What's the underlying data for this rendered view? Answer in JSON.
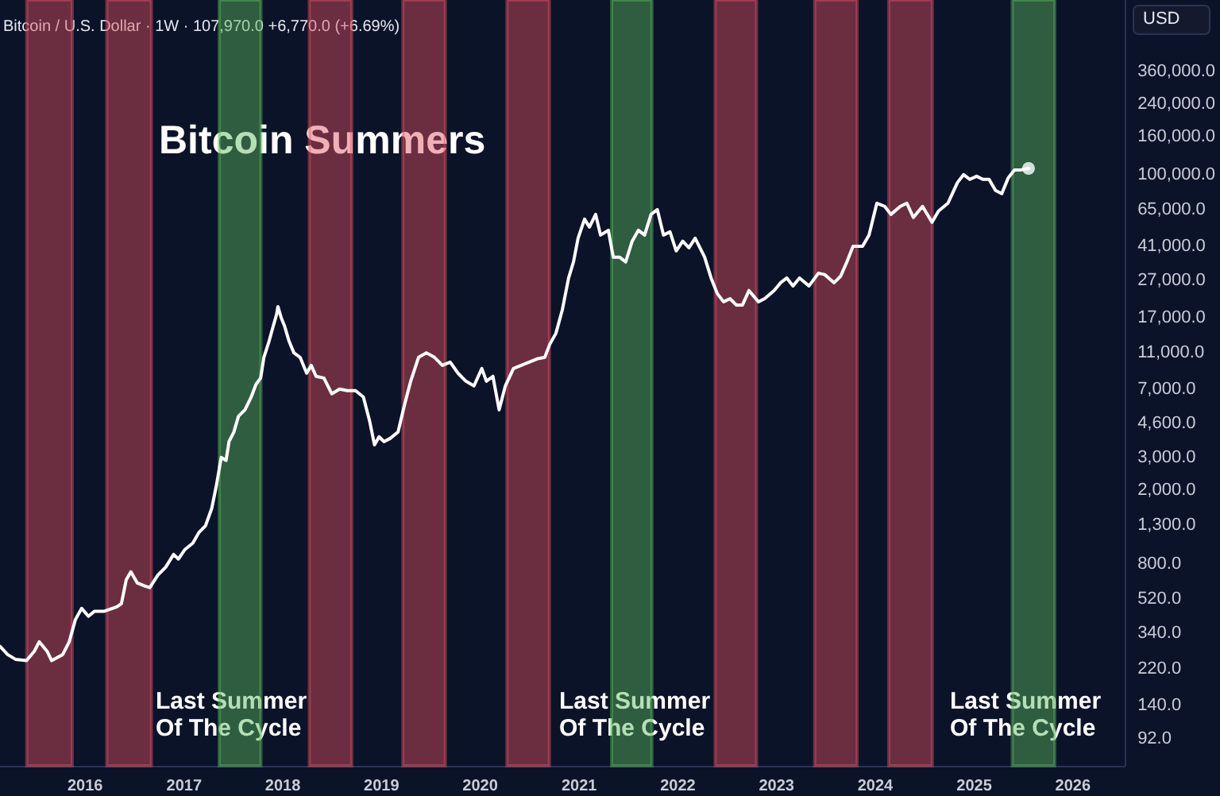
{
  "chart_data": {
    "type": "line",
    "title": "Bitcoin Summers",
    "subtitle": "Bitcoin / U.S. Dollar · 1W · 107,970.0 +6,770.0 (+6.69%)",
    "annotations": [
      "USD",
      "Last Summer\nOf The Cycle",
      "Last Summer\nOf The Cycle",
      "Last Summer\nOf The Cycle"
    ],
    "xlim": [
      "2015-02-20",
      "2026-07-12"
    ],
    "xticks": [
      "2016",
      "2017",
      "2018",
      "2019",
      "2020",
      "2021",
      "2022",
      "2023",
      "2024",
      "2025",
      "2026"
    ],
    "log": "y",
    "ylim": [
      66,
      870000
    ],
    "yticks": [
      {
        "value": 92,
        "label": "92.0"
      },
      {
        "value": 140,
        "label": "140.0"
      },
      {
        "value": 220,
        "label": "220.0"
      },
      {
        "value": 340,
        "label": "340.0"
      },
      {
        "value": 520,
        "label": "520.0"
      },
      {
        "value": 800,
        "label": "800.0"
      },
      {
        "value": 1300,
        "label": "1,300.0"
      },
      {
        "value": 2000,
        "label": "2,000.0"
      },
      {
        "value": 3000,
        "label": "3,000.0"
      },
      {
        "value": 4600,
        "label": "4,600.0"
      },
      {
        "value": 7000,
        "label": "7,000.0"
      },
      {
        "value": 11000,
        "label": "11,000.0"
      },
      {
        "value": 17000,
        "label": "17,000.0"
      },
      {
        "value": 27000,
        "label": "27,000.0"
      },
      {
        "value": 41000,
        "label": "41,000.0"
      },
      {
        "value": 65000,
        "label": "65,000.0"
      },
      {
        "value": 100000,
        "label": "100,000.0"
      },
      {
        "value": 160000,
        "label": "160,000.0"
      },
      {
        "value": 240000,
        "label": "240,000.0"
      },
      {
        "value": 360000,
        "label": "360,000.0"
      }
    ],
    "grid": false,
    "bands": [
      {
        "axis": "x",
        "from": "2015-05-30",
        "to": "2015-11-14",
        "color": "#e0505f"
      },
      {
        "axis": "x",
        "from": "2016-03-21",
        "to": "2016-09-02",
        "color": "#e0505f"
      },
      {
        "axis": "x",
        "from": "2017-05-11",
        "to": "2017-10-12",
        "color": "#5cb85c"
      },
      {
        "axis": "x",
        "from": "2018-04-09",
        "to": "2018-09-13",
        "color": "#e0505f"
      },
      {
        "axis": "x",
        "from": "2019-03-21",
        "to": "2019-08-25",
        "color": "#e0505f"
      },
      {
        "axis": "x",
        "from": "2020-04-09",
        "to": "2020-09-13",
        "color": "#e0505f"
      },
      {
        "axis": "x",
        "from": "2021-05-01",
        "to": "2021-09-27",
        "color": "#5cb85c"
      },
      {
        "axis": "x",
        "from": "2022-05-19",
        "to": "2022-10-19",
        "color": "#e0505f"
      },
      {
        "axis": "x",
        "from": "2023-05-22",
        "to": "2023-10-26",
        "color": "#e0505f"
      },
      {
        "axis": "x",
        "from": "2024-02-20",
        "to": "2024-07-30",
        "color": "#e0505f"
      },
      {
        "axis": "x",
        "from": "2025-05-22",
        "to": "2025-10-26",
        "color": "#5cb85c"
      }
    ],
    "series": [
      {
        "color": "#ffffff",
        "line_style": "solid",
        "x": [
          "2015-02-20",
          "2015-03-20",
          "2015-04-18",
          "2015-05-29",
          "2015-06-27",
          "2015-07-15",
          "2015-08-13",
          "2015-08-30",
          "2015-10-10",
          "2015-11-03",
          "2015-11-26",
          "2015-12-19",
          "2016-01-13",
          "2016-02-04",
          "2016-03-10",
          "2016-04-27",
          "2016-05-14",
          "2016-06-01",
          "2016-06-18",
          "2016-07-12",
          "2016-08-10",
          "2016-08-27",
          "2016-09-26",
          "2016-10-25",
          "2016-11-23",
          "2016-12-11",
          "2017-01-04",
          "2017-02-02",
          "2017-02-25",
          "2017-03-21",
          "2017-04-13",
          "2017-05-01",
          "2017-05-18",
          "2017-06-05",
          "2017-06-16",
          "2017-07-04",
          "2017-07-21",
          "2017-08-14",
          "2017-09-06",
          "2017-09-24",
          "2017-10-11",
          "2017-10-23",
          "2017-11-09",
          "2017-11-27",
          "2017-12-09",
          "2017-12-14",
          "2017-12-26",
          "2018-01-07",
          "2018-01-24",
          "2018-02-11",
          "2018-03-06",
          "2018-03-30",
          "2018-04-16",
          "2018-05-04",
          "2018-06-02",
          "2018-07-01",
          "2018-07-30",
          "2018-08-28",
          "2018-09-27",
          "2018-10-26",
          "2018-11-18",
          "2018-12-06",
          "2018-12-23",
          "2019-01-10",
          "2019-02-02",
          "2019-03-03",
          "2019-03-27",
          "2019-04-19",
          "2019-05-18",
          "2019-06-16",
          "2019-07-16",
          "2019-08-14",
          "2019-09-12",
          "2019-10-11",
          "2019-11-09",
          "2019-12-09",
          "2020-01-07",
          "2020-01-24",
          "2020-02-17",
          "2020-03-11",
          "2020-04-03",
          "2020-05-03",
          "2020-06-01",
          "2020-06-30",
          "2020-07-29",
          "2020-08-27",
          "2020-09-14",
          "2020-10-07",
          "2020-10-31",
          "2020-11-23",
          "2020-12-11",
          "2020-12-28",
          "2021-01-21",
          "2021-02-08",
          "2021-03-03",
          "2021-03-21",
          "2021-04-19",
          "2021-05-07",
          "2021-05-30",
          "2021-06-22",
          "2021-07-16",
          "2021-08-08",
          "2021-08-31",
          "2021-09-24",
          "2021-10-17",
          "2021-11-09",
          "2021-12-03",
          "2021-12-26",
          "2022-01-19",
          "2022-02-11",
          "2022-03-06",
          "2022-04-10",
          "2022-05-04",
          "2022-05-27",
          "2022-06-19",
          "2022-07-13",
          "2022-08-05",
          "2022-08-28",
          "2022-09-21",
          "2022-10-26",
          "2022-11-18",
          "2022-12-23",
          "2023-01-16",
          "2023-02-08",
          "2023-03-03",
          "2023-03-27",
          "2023-05-01",
          "2023-06-05",
          "2023-06-28",
          "2023-08-02",
          "2023-08-26",
          "2023-09-18",
          "2023-10-11",
          "2023-11-15",
          "2023-12-09",
          "2024-01-07",
          "2024-02-05",
          "2024-02-28",
          "2024-04-03",
          "2024-04-27",
          "2024-05-21",
          "2024-06-24",
          "2024-07-29",
          "2024-08-22",
          "2024-09-26",
          "2024-10-31",
          "2024-11-23",
          "2024-12-16",
          "2025-01-10",
          "2025-02-02",
          "2025-02-25",
          "2025-03-21",
          "2025-04-13",
          "2025-05-07",
          "2025-05-30",
          "2025-06-22",
          "2025-07-21"
        ],
        "values": [
          290,
          262,
          247,
          243,
          273,
          307,
          273,
          243,
          262,
          307,
          404,
          464,
          421,
          447,
          447,
          473,
          492,
          662,
          730,
          635,
          611,
          600,
          701,
          774,
          906,
          855,
          962,
          1040,
          1190,
          1290,
          1600,
          2150,
          3010,
          2900,
          3660,
          4120,
          5020,
          5430,
          6360,
          7450,
          8050,
          10400,
          12400,
          15400,
          17700,
          19500,
          17000,
          15400,
          12700,
          11000,
          10400,
          8550,
          9420,
          8220,
          8050,
          6620,
          7020,
          6880,
          6880,
          6360,
          4730,
          3520,
          3890,
          3660,
          3810,
          4120,
          5770,
          7740,
          10400,
          11000,
          10400,
          9420,
          9800,
          8550,
          7740,
          7300,
          9060,
          7740,
          8220,
          5430,
          7300,
          9060,
          9420,
          9800,
          10200,
          10400,
          12200,
          14000,
          18800,
          27800,
          33900,
          45500,
          57600,
          52200,
          61100,
          47300,
          50200,
          36000,
          36000,
          33900,
          43800,
          50200,
          47300,
          61100,
          64900,
          47300,
          49200,
          38900,
          43800,
          40400,
          45500,
          36000,
          27800,
          22900,
          20700,
          21500,
          19900,
          19900,
          23800,
          20700,
          21500,
          23800,
          26200,
          27800,
          25200,
          27800,
          25200,
          29500,
          29000,
          26200,
          28400,
          33900,
          41200,
          41200,
          47300,
          70200,
          67500,
          61100,
          67500,
          70200,
          58800,
          67500,
          55400,
          63600,
          70200,
          90600,
          100000,
          94300,
          98000,
          94300,
          94300,
          82200,
          79000,
          96100,
          106000,
          106000,
          107970
        ]
      },
      {
        "type": "scatter",
        "color": "#ffffff",
        "marker": "circle",
        "x": [
          "2025-07-21"
        ],
        "values": [
          107970
        ]
      }
    ]
  }
}
